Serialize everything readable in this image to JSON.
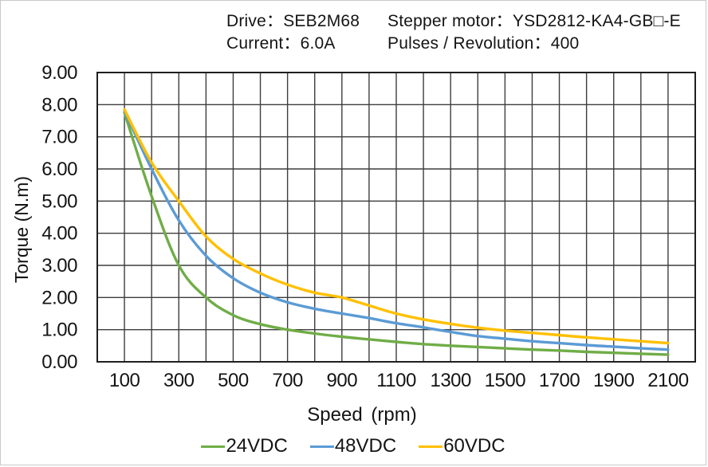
{
  "header": {
    "drive": "Drive：SEB2M68",
    "stepper_motor": "Stepper motor：YSD2812-KA4-GB□-E",
    "current": "Current：6.0A",
    "pulses_per_revolution": "Pulses / Revolution：400"
  },
  "chart_data": {
    "type": "line",
    "title": "",
    "xlabel": "Speed (rpm)",
    "ylabel": "Torque (N.m)",
    "xlim": [
      0,
      2200
    ],
    "ylim": [
      0,
      9
    ],
    "x_grid_step": 100,
    "y_grid_step": 1,
    "x_tick_labels": [
      100,
      300,
      500,
      700,
      900,
      1100,
      1300,
      1500,
      1700,
      1900,
      2100
    ],
    "y_tick_decimals": 2,
    "grid": true,
    "grid_color": "#3d3d3d",
    "border_color": "#1f1f1f",
    "legend_position": "bottom",
    "x": [
      100,
      200,
      300,
      400,
      500,
      600,
      700,
      800,
      900,
      1000,
      1100,
      1200,
      1300,
      1400,
      1500,
      1600,
      1700,
      1800,
      1900,
      2000,
      2100
    ],
    "series": [
      {
        "name": "24VDC",
        "color": "#70AD47",
        "values": [
          7.75,
          5.15,
          3.0,
          2.0,
          1.45,
          1.17,
          1.0,
          0.88,
          0.78,
          0.7,
          0.62,
          0.55,
          0.5,
          0.46,
          0.42,
          0.38,
          0.35,
          0.31,
          0.28,
          0.25,
          0.22
        ]
      },
      {
        "name": "48VDC",
        "color": "#5B9BD5",
        "values": [
          7.8,
          6.0,
          4.4,
          3.3,
          2.6,
          2.15,
          1.85,
          1.65,
          1.5,
          1.36,
          1.2,
          1.07,
          0.93,
          0.8,
          0.72,
          0.64,
          0.58,
          0.52,
          0.47,
          0.42,
          0.38
        ]
      },
      {
        "name": "60VDC",
        "color": "#FFC000",
        "values": [
          7.85,
          6.2,
          5.0,
          3.9,
          3.2,
          2.75,
          2.4,
          2.15,
          2.0,
          1.75,
          1.5,
          1.32,
          1.18,
          1.06,
          0.97,
          0.9,
          0.83,
          0.76,
          0.7,
          0.64,
          0.58
        ]
      }
    ]
  }
}
